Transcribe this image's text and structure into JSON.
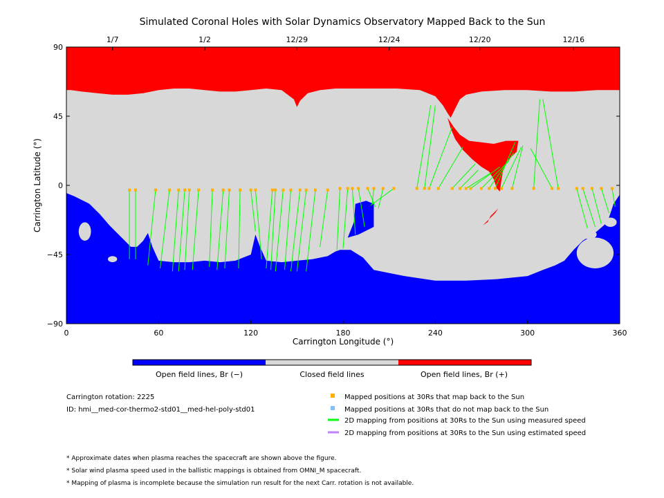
{
  "chart_data": {
    "type": "map",
    "title": "Simulated Coronal Holes with Solar Dynamics Observatory Mapped Back to the Sun",
    "xlabel": "Carrington Longitude (°)",
    "ylabel": "Carrington Latitude (°)",
    "xlim": [
      0,
      360
    ],
    "ylim": [
      -90,
      90
    ],
    "x_ticks": [
      0,
      60,
      120,
      180,
      240,
      300,
      360
    ],
    "y_ticks": [
      -90,
      -45,
      0,
      45,
      90
    ],
    "top_date_ticks": [
      {
        "label": "1/7",
        "lon": 30
      },
      {
        "label": "1/2",
        "lon": 90
      },
      {
        "label": "12/29",
        "lon": 150
      },
      {
        "label": "12/24",
        "lon": 210
      },
      {
        "label": "12/20",
        "lon": 269
      },
      {
        "label": "12/16",
        "lon": 330
      }
    ],
    "colors": {
      "open_negative": "#0000ff",
      "closed": "#d8d8d8",
      "open_positive": "#ff0000",
      "mapped_point": "#ffb000",
      "unmapped_point": "#80c0ff",
      "measured_line": "#00ff00",
      "estimated_line": "#c080ff"
    },
    "north_hole_boundary": [
      [
        0,
        62
      ],
      [
        3,
        62
      ],
      [
        10,
        61
      ],
      [
        20,
        60
      ],
      [
        30,
        59
      ],
      [
        40,
        59
      ],
      [
        50,
        60
      ],
      [
        60,
        62
      ],
      [
        70,
        63
      ],
      [
        80,
        63
      ],
      [
        90,
        62
      ],
      [
        100,
        61
      ],
      [
        110,
        61
      ],
      [
        120,
        62
      ],
      [
        130,
        63
      ],
      [
        140,
        62
      ],
      [
        148,
        56
      ],
      [
        150,
        51
      ],
      [
        152,
        55
      ],
      [
        157,
        60
      ],
      [
        165,
        62
      ],
      [
        175,
        63
      ],
      [
        185,
        63
      ],
      [
        200,
        63
      ],
      [
        215,
        63
      ],
      [
        230,
        62
      ],
      [
        240,
        58
      ],
      [
        245,
        52
      ],
      [
        248,
        47
      ],
      [
        250,
        44
      ],
      [
        253,
        50
      ],
      [
        256,
        56
      ],
      [
        260,
        59
      ],
      [
        270,
        61
      ],
      [
        285,
        62
      ],
      [
        300,
        62
      ],
      [
        315,
        61
      ],
      [
        330,
        61
      ],
      [
        345,
        62
      ],
      [
        360,
        62
      ]
    ],
    "south_hole_boundary": [
      [
        0,
        -5
      ],
      [
        5,
        -7
      ],
      [
        15,
        -12
      ],
      [
        22,
        -19
      ],
      [
        28,
        -26
      ],
      [
        33,
        -31
      ],
      [
        38,
        -36
      ],
      [
        42,
        -40
      ],
      [
        46,
        -40
      ],
      [
        50,
        -36
      ],
      [
        53,
        -31
      ],
      [
        56,
        -40
      ],
      [
        60,
        -49
      ],
      [
        70,
        -50
      ],
      [
        80,
        -50
      ],
      [
        90,
        -49
      ],
      [
        100,
        -50
      ],
      [
        110,
        -49
      ],
      [
        120,
        -45
      ],
      [
        123,
        -32
      ],
      [
        126,
        -40
      ],
      [
        130,
        -49
      ],
      [
        140,
        -50
      ],
      [
        150,
        -49
      ],
      [
        160,
        -48
      ],
      [
        170,
        -46
      ],
      [
        175,
        -43
      ],
      [
        178,
        -42
      ],
      [
        185,
        -42
      ],
      [
        193,
        -47
      ],
      [
        200,
        -55
      ],
      [
        210,
        -57
      ],
      [
        220,
        -59
      ],
      [
        240,
        -62
      ],
      [
        260,
        -62
      ],
      [
        280,
        -61
      ],
      [
        300,
        -59
      ],
      [
        310,
        -55
      ],
      [
        318,
        -52
      ],
      [
        324,
        -49
      ],
      [
        330,
        -42
      ],
      [
        336,
        -36
      ],
      [
        345,
        -30
      ],
      [
        352,
        -24
      ],
      [
        356,
        -12
      ],
      [
        360,
        -6
      ]
    ],
    "projected_region": [
      [
        248,
        44
      ],
      [
        252,
        38
      ],
      [
        256,
        33
      ],
      [
        262,
        29
      ],
      [
        270,
        28
      ],
      [
        278,
        27
      ],
      [
        286,
        29
      ],
      [
        294,
        29
      ],
      [
        293,
        22
      ],
      [
        287,
        16
      ],
      [
        284,
        9
      ],
      [
        283,
        3
      ],
      [
        282,
        -4
      ],
      [
        280,
        -2
      ],
      [
        278,
        4
      ],
      [
        275,
        9
      ],
      [
        270,
        12
      ],
      [
        264,
        17
      ],
      [
        258,
        23
      ],
      [
        253,
        30
      ],
      [
        250,
        37
      ]
    ],
    "island_positive": [
      [
        271,
        -26
      ],
      [
        275,
        -22
      ],
      [
        279,
        -18
      ],
      [
        281,
        -15
      ],
      [
        279,
        -17
      ],
      [
        276,
        -20
      ],
      [
        274,
        -24
      ]
    ],
    "extension_negative": [
      [
        188,
        -12
      ],
      [
        195,
        -10
      ],
      [
        200,
        -12
      ],
      [
        200,
        -27
      ],
      [
        190,
        -32
      ],
      [
        183,
        -34
      ],
      [
        187,
        -24
      ]
    ],
    "points": [
      [
        41,
        -3
      ],
      [
        45,
        -3
      ],
      [
        58,
        -3
      ],
      [
        67,
        -3
      ],
      [
        73,
        -3
      ],
      [
        77,
        -3
      ],
      [
        80,
        -3
      ],
      [
        86,
        -3
      ],
      [
        95,
        -3
      ],
      [
        102,
        -3
      ],
      [
        106,
        -3
      ],
      [
        113,
        -3
      ],
      [
        120,
        -3
      ],
      [
        123,
        -3
      ],
      [
        134,
        -3
      ],
      [
        136,
        -3
      ],
      [
        141,
        -3
      ],
      [
        146,
        -3
      ],
      [
        152,
        -3
      ],
      [
        156,
        -3
      ],
      [
        162,
        -3
      ],
      [
        170,
        -3
      ],
      [
        178,
        -2
      ],
      [
        183,
        -2
      ],
      [
        186,
        -2
      ],
      [
        190,
        -2
      ],
      [
        196,
        -2
      ],
      [
        200,
        -2
      ],
      [
        206,
        -2
      ],
      [
        213,
        -2
      ],
      [
        228,
        -2
      ],
      [
        233,
        -2
      ],
      [
        236,
        -2
      ],
      [
        242,
        -2
      ],
      [
        251,
        -2
      ],
      [
        256,
        -2
      ],
      [
        260,
        -2
      ],
      [
        263,
        -2
      ],
      [
        270,
        -2
      ],
      [
        275,
        -2
      ],
      [
        279,
        -2
      ],
      [
        283,
        -2
      ],
      [
        290,
        -2
      ],
      [
        304,
        -2
      ],
      [
        316,
        -2
      ],
      [
        320,
        -2
      ],
      [
        332,
        -2
      ],
      [
        336,
        -2
      ],
      [
        342,
        -2
      ],
      [
        348,
        -2
      ],
      [
        355,
        -2
      ]
    ],
    "mapping_lines": [
      [
        [
          41,
          -3
        ],
        [
          41,
          -48
        ]
      ],
      [
        [
          45,
          -3
        ],
        [
          45,
          -48
        ]
      ],
      [
        [
          58,
          -3
        ],
        [
          53,
          -52
        ]
      ],
      [
        [
          67,
          -3
        ],
        [
          61,
          -54
        ]
      ],
      [
        [
          73,
          -3
        ],
        [
          69,
          -56
        ]
      ],
      [
        [
          77,
          -3
        ],
        [
          73,
          -56
        ]
      ],
      [
        [
          80,
          -3
        ],
        [
          77,
          -55
        ]
      ],
      [
        [
          86,
          -3
        ],
        [
          82,
          -55
        ]
      ],
      [
        [
          95,
          -3
        ],
        [
          93,
          -53
        ]
      ],
      [
        [
          102,
          -3
        ],
        [
          98,
          -55
        ]
      ],
      [
        [
          106,
          -3
        ],
        [
          103,
          -54
        ]
      ],
      [
        [
          113,
          -3
        ],
        [
          112,
          -54
        ]
      ],
      [
        [
          120,
          -3
        ],
        [
          123,
          -30
        ]
      ],
      [
        [
          123,
          -3
        ],
        [
          127,
          -48
        ]
      ],
      [
        [
          134,
          -3
        ],
        [
          130,
          -54
        ]
      ],
      [
        [
          136,
          -3
        ],
        [
          133,
          -55
        ]
      ],
      [
        [
          141,
          -3
        ],
        [
          136,
          -56
        ]
      ],
      [
        [
          146,
          -3
        ],
        [
          142,
          -55
        ]
      ],
      [
        [
          152,
          -3
        ],
        [
          146,
          -56
        ]
      ],
      [
        [
          156,
          -3
        ],
        [
          150,
          -56
        ]
      ],
      [
        [
          162,
          -3
        ],
        [
          156,
          -56
        ]
      ],
      [
        [
          170,
          -3
        ],
        [
          165,
          -40
        ]
      ],
      [
        [
          178,
          -2
        ],
        [
          176,
          -42
        ]
      ],
      [
        [
          183,
          -2
        ],
        [
          180,
          -41
        ]
      ],
      [
        [
          186,
          -2
        ],
        [
          188,
          -32
        ]
      ],
      [
        [
          190,
          -2
        ],
        [
          194,
          -27
        ]
      ],
      [
        [
          196,
          -2
        ],
        [
          201,
          -14
        ]
      ],
      [
        [
          200,
          -2
        ],
        [
          199,
          -12
        ]
      ],
      [
        [
          206,
          -2
        ],
        [
          203,
          -15
        ]
      ],
      [
        [
          213,
          -2
        ],
        [
          198,
          -13
        ]
      ],
      [
        [
          228,
          -2
        ],
        [
          237,
          52
        ]
      ],
      [
        [
          233,
          -2
        ],
        [
          240,
          52
        ]
      ],
      [
        [
          236,
          -2
        ],
        [
          251,
          38
        ]
      ],
      [
        [
          242,
          -2
        ],
        [
          258,
          25
        ]
      ],
      [
        [
          251,
          -2
        ],
        [
          266,
          14
        ]
      ],
      [
        [
          256,
          -2
        ],
        [
          268,
          10
        ]
      ],
      [
        [
          260,
          -2
        ],
        [
          276,
          8
        ]
      ],
      [
        [
          263,
          -2
        ],
        [
          282,
          12
        ]
      ],
      [
        [
          270,
          -2
        ],
        [
          288,
          16
        ]
      ],
      [
        [
          275,
          -2
        ],
        [
          291,
          21
        ]
      ],
      [
        [
          279,
          -2
        ],
        [
          292,
          28
        ]
      ],
      [
        [
          283,
          -2
        ],
        [
          296,
          25
        ]
      ],
      [
        [
          290,
          -2
        ],
        [
          297,
          26
        ]
      ],
      [
        [
          304,
          -2
        ],
        [
          308,
          56
        ]
      ],
      [
        [
          316,
          -2
        ],
        [
          302,
          24
        ]
      ],
      [
        [
          320,
          -2
        ],
        [
          310,
          56
        ]
      ],
      [
        [
          332,
          -2
        ],
        [
          339,
          -28
        ]
      ],
      [
        [
          336,
          -2
        ],
        [
          344,
          -27
        ]
      ],
      [
        [
          342,
          -2
        ],
        [
          348,
          -25
        ]
      ],
      [
        [
          348,
          -2
        ],
        [
          353,
          -18
        ]
      ],
      [
        [
          355,
          -2
        ],
        [
          357,
          -14
        ]
      ]
    ]
  },
  "colorbar": {
    "labels": [
      "Open field lines, Br (−)",
      "Closed field lines",
      "Open field lines, Br (+)"
    ]
  },
  "info": {
    "rotation": "Carrington rotation: 2225",
    "id": "ID: hmi__med-cor-thermo2-std01__med-hel-poly-std01"
  },
  "legend": [
    {
      "text": "Mapped positions at 30Rs that map back to the Sun",
      "kind": "square",
      "color": "#ffb000"
    },
    {
      "text": "Mapped positions at 30Rs that do not map back to the Sun",
      "kind": "square",
      "color": "#80c0ff"
    },
    {
      "text": "2D mapping from positions at 30Rs to the Sun using measured speed",
      "kind": "line",
      "color": "#00ff00"
    },
    {
      "text": "2D mapping from positions at 30Rs to the Sun using estimated speed",
      "kind": "line",
      "color": "#c080ff"
    }
  ],
  "notes": [
    "* Approximate dates when plasma reaches the spacecraft are shown above the figure.",
    "* Solar wind plasma speed used in the ballistic mappings is obtained from OMNI_M spacecraft.",
    "* Mapping of plasma is incomplete because the simulation run result for the next Carr. rotation is not available."
  ]
}
